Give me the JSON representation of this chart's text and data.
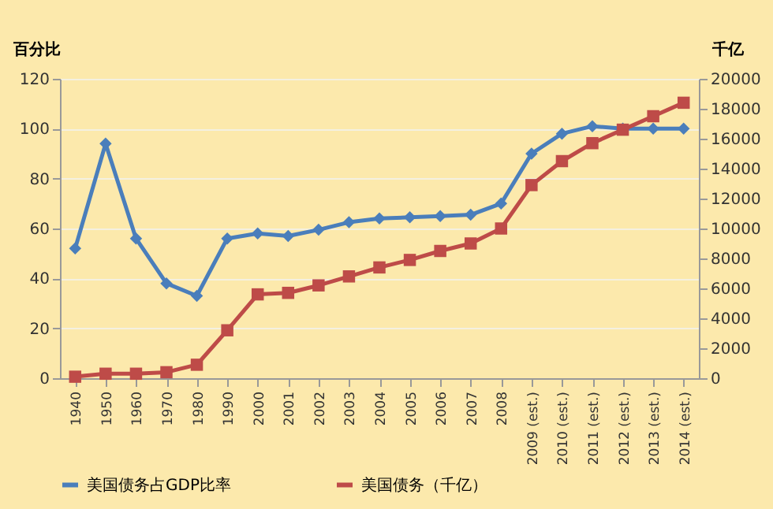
{
  "chart_data": {
    "type": "line",
    "ylabel": "百分比",
    "y2label": "千亿",
    "categories": [
      "1940",
      "1950",
      "1960",
      "1970",
      "1980",
      "1990",
      "2000",
      "2001",
      "2002",
      "2003",
      "2004",
      "2005",
      "2006",
      "2007",
      "2008",
      "2009 (est.)",
      "2010 (est.)",
      "2011 (est.)",
      "2012 (est.)",
      "2013 (est.)",
      "2014 (est.)"
    ],
    "series": [
      {
        "name": "美国债务占GDP比率",
        "color": "#4a7ebb",
        "marker": "diamond",
        "values": [
          52,
          94,
          56,
          38,
          33,
          56,
          58,
          57,
          59.5,
          62.5,
          64,
          64.5,
          65,
          65.5,
          70,
          90,
          98,
          101,
          100,
          100,
          100
        ]
      },
      {
        "name": "美国债务（千亿）",
        "color": "#be4b48",
        "marker": "square",
        "axis": "y2",
        "values": [
          100,
          300,
          300,
          400,
          900,
          3200,
          5600,
          5700,
          6200,
          6800,
          7400,
          7900,
          8500,
          9000,
          10000,
          12900,
          14500,
          15700,
          16600,
          17500,
          18400
        ]
      }
    ],
    "ylim": [
      0,
      120
    ],
    "yticks": [
      0,
      20,
      40,
      60,
      80,
      100,
      120
    ],
    "y2lim": [
      0,
      20000
    ],
    "y2ticks": [
      0,
      2000,
      4000,
      6000,
      8000,
      10000,
      12000,
      14000,
      16000,
      18000,
      20000
    ],
    "grid": "y",
    "legend": "bottom",
    "line_style": "solid"
  }
}
